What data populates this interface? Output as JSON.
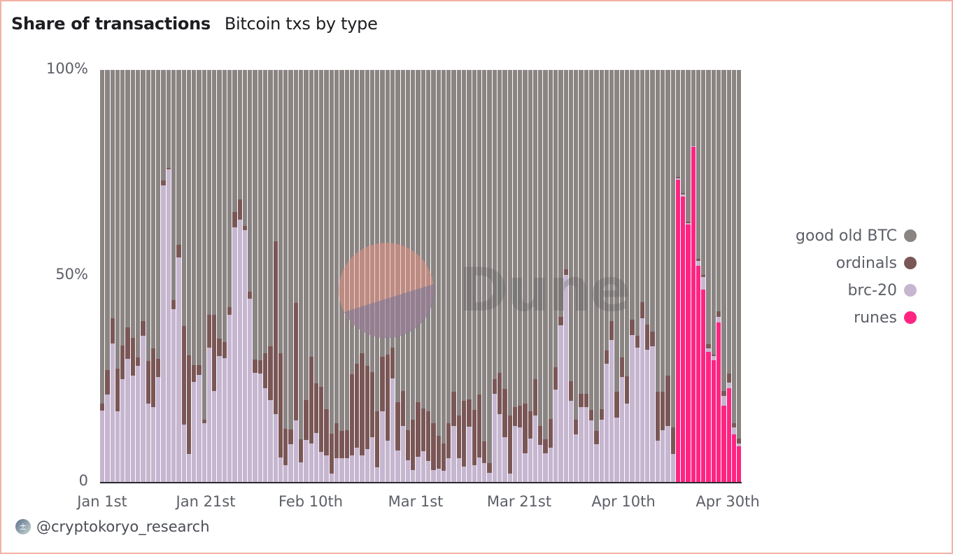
{
  "header": {
    "title": "Share of transactions",
    "subtitle": "Bitcoin txs by type"
  },
  "footer": {
    "avatar_icon": "user-avatar",
    "handle": "@cryptokoryo_research"
  },
  "watermark": {
    "text": "Dune"
  },
  "colors": {
    "good_old_btc": "#8a8483",
    "ordinals": "#7a5756",
    "brc20": "#c6b6d0",
    "runes": "#ff2482",
    "frame": "#f2b2a6"
  },
  "chart_data": {
    "type": "bar",
    "stacked": true,
    "normalized": true,
    "title": "Share of transactions",
    "subtitle": "Bitcoin txs by type",
    "xlabel": "",
    "ylabel": "",
    "ylim": [
      0,
      100
    ],
    "y_ticks": [
      "0",
      "50%",
      "100%"
    ],
    "x_ticks": [
      "Jan 1st",
      "Jan 21st",
      "Feb 10th",
      "Mar 1st",
      "Mar 21st",
      "Apr 10th",
      "Apr 30th"
    ],
    "x_start": "Jan 1st",
    "x_count_days": 126,
    "legend": [
      "good old BTC",
      "ordinals",
      "brc-20",
      "runes"
    ],
    "legend_position": "right",
    "grid": false,
    "series": [
      {
        "name": "runes",
        "values": [
          0,
          0,
          0,
          0,
          0,
          0,
          0,
          0,
          0,
          0,
          0,
          0,
          0,
          0,
          0,
          0,
          0,
          0,
          0,
          0,
          0,
          0,
          0,
          0,
          0,
          0,
          0,
          0,
          0,
          0,
          0,
          0,
          0,
          0,
          0,
          0,
          0,
          0,
          0,
          0,
          0,
          0,
          0,
          0,
          0,
          0,
          0,
          0,
          0,
          0,
          0,
          0,
          0,
          0,
          0,
          0,
          0,
          0,
          0,
          0,
          0,
          0,
          0,
          0,
          0,
          0,
          0,
          0,
          0,
          0,
          0,
          0,
          0,
          0,
          0,
          0,
          0,
          0,
          0,
          0,
          0,
          0,
          0,
          0,
          0,
          0,
          0,
          0,
          0,
          0,
          0,
          0,
          0,
          0,
          0,
          0,
          0,
          0,
          0,
          0,
          0,
          0,
          0,
          0,
          0,
          0,
          0,
          0,
          0,
          0,
          0,
          0,
          0,
          73.4,
          69.3,
          62.5,
          81.4,
          52.5,
          46.8,
          31.7,
          29.7,
          38.8,
          18.6,
          22.9,
          11.7,
          8.8
        ]
      },
      {
        "name": "brc-20",
        "values": [
          17.5,
          21.4,
          33.7,
          17.3,
          25.1,
          30.0,
          25.9,
          28.3,
          35.6,
          19.2,
          18.3,
          25.6,
          72.0,
          76.0,
          42.0,
          54.6,
          14.0,
          7.0,
          24.4,
          26.1,
          14.4,
          32.7,
          22.2,
          30.7,
          30.2,
          40.7,
          61.9,
          63.7,
          61.2,
          44.6,
          26.6,
          26.4,
          22.9,
          20.0,
          16.6,
          6.1,
          4.2,
          9.3,
          15.1,
          4.9,
          10.3,
          9.5,
          12.0,
          7.5,
          6.6,
          2.2,
          5.9,
          5.9,
          5.9,
          6.6,
          8.5,
          6.6,
          8.1,
          11.0,
          3.7,
          17.3,
          10.2,
          25.3,
          7.8,
          13.7,
          5.4,
          3.0,
          6.3,
          7.6,
          5.3,
          3.0,
          3.4,
          2.9,
          5.9,
          13.7,
          5.9,
          3.9,
          13.6,
          4.2,
          6.1,
          4.7,
          2.4,
          21.5,
          16.6,
          11.0,
          2.2,
          13.7,
          13.4,
          7.1,
          10.7,
          16.3,
          9.2,
          7.1,
          8.5,
          22.5,
          38.1,
          50.3,
          19.8,
          11.7,
          18.3,
          18.3,
          15.1,
          9.3,
          15.3,
          28.8,
          34.6,
          15.8,
          25.6,
          19.2,
          35.8,
          32.7,
          39.8,
          32.2,
          33.0,
          10.2,
          12.7,
          13.7,
          7.0,
          0.3,
          0.5,
          0.4,
          0.1,
          1.2,
          3.0,
          0.8,
          0.9,
          1.4,
          2.4,
          1.3,
          1.7,
          0.7
        ]
      },
      {
        "name": "ordinals",
        "values": [
          1.7,
          5.9,
          6.1,
          10.3,
          8.1,
          7.6,
          9.2,
          2.0,
          3.6,
          10.3,
          14.2,
          4.4,
          1.2,
          0.3,
          2.2,
          3.0,
          24.0,
          23.8,
          4.1,
          2.4,
          0.9,
          8.0,
          18.5,
          4.2,
          3.9,
          1.8,
          3.7,
          4.9,
          1.0,
          1.7,
          3.2,
          3.3,
          8.5,
          13.0,
          41.9,
          25.3,
          8.8,
          3.6,
          28.5,
          5.6,
          9.7,
          21.0,
          12.0,
          15.7,
          11.2,
          9.7,
          8.5,
          6.6,
          6.8,
          19.7,
          20.3,
          24.8,
          20.2,
          15.8,
          13.6,
          13.2,
          20.8,
          7.4,
          11.7,
          8.5,
          7.3,
          12.3,
          13.2,
          10.4,
          12.0,
          11.4,
          8.0,
          6.6,
          8.5,
          8.3,
          10.4,
          15.9,
          6.6,
          13.4,
          15.3,
          5.3,
          2.3,
          3.6,
          10.0,
          11.7,
          14.1,
          4.6,
          5.2,
          12.1,
          6.6,
          8.8,
          4.5,
          3.4,
          6.9,
          5.5,
          2.1,
          1.4,
          4.8,
          3.6,
          3.2,
          3.2,
          2.5,
          3.2,
          2.5,
          3.2,
          4.6,
          6.2,
          4.7,
          6.6,
          3.7,
          2.9,
          3.9,
          6.1,
          3.6,
          11.8,
          9.3,
          12.2,
          6.4,
          0.3,
          0.4,
          0.3,
          0.1,
          0.5,
          0.5,
          1.1,
          0.5,
          1.3,
          1.2,
          2.2,
          1.0,
          1.2
        ]
      }
    ]
  }
}
